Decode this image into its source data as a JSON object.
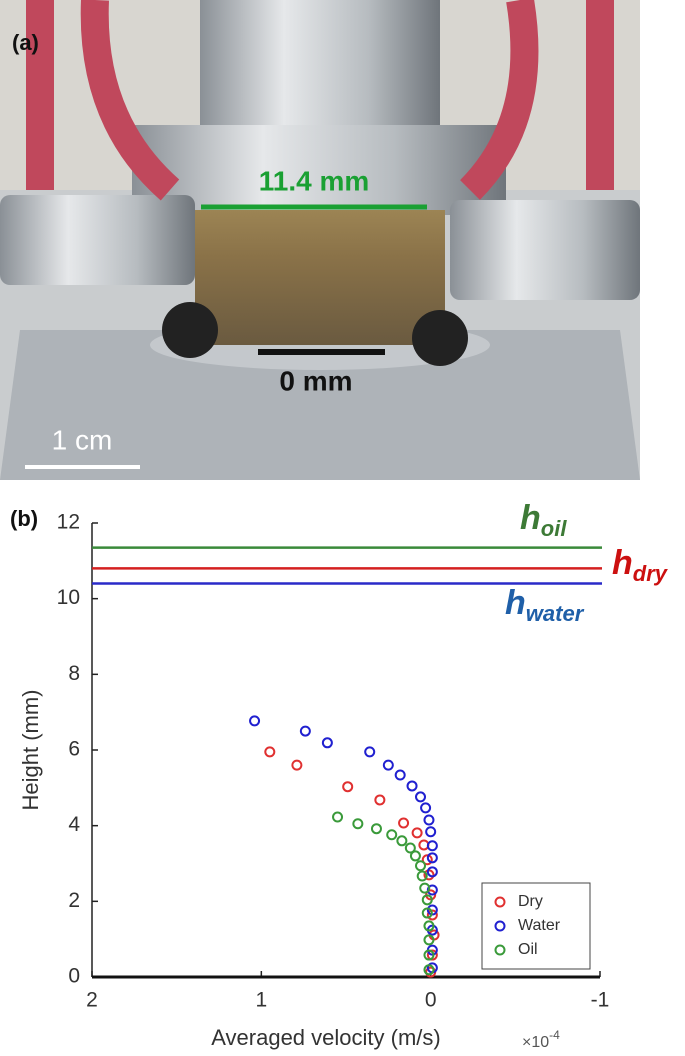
{
  "photo": {
    "panel_label": "(a)",
    "top_label": "11.4 mm",
    "bottom_label": "0 mm",
    "scale_bar": "1 cm"
  },
  "chart_data": {
    "type": "scatter",
    "panel_label": "(b)",
    "xlabel": "Averaged velocity (m/s)",
    "ylabel": "Height (mm)",
    "x_multiplier": {
      "base": "×10",
      "exponent": "-4"
    },
    "xlim": [
      2,
      -1
    ],
    "xticks": [
      2,
      1,
      0,
      -1
    ],
    "ylim": [
      0,
      12
    ],
    "yticks": [
      0,
      2,
      4,
      6,
      8,
      10,
      12
    ],
    "hlines": [
      {
        "value": 11.35,
        "symbol": "h",
        "subscript": "oil",
        "color": "#3a8a3a",
        "label_color": "#3d7a36"
      },
      {
        "value": 10.8,
        "symbol": "h",
        "subscript": "dry",
        "color": "#d42020",
        "label_color": "#cc1010"
      },
      {
        "value": 10.4,
        "symbol": "h",
        "subscript": "water",
        "color": "#2a2ac8",
        "label_color": "#1f5fa8"
      }
    ],
    "legend": "lower right",
    "series": [
      {
        "name": "Dry",
        "color": "#e03030",
        "x": [
          0.95,
          0.79,
          0.49,
          0.3,
          0.16,
          0.08,
          0.04,
          0.02,
          0.01,
          0,
          -0.01,
          -0.02,
          -0.01,
          0
        ],
        "values": [
          5.95,
          5.6,
          5.03,
          4.68,
          4.07,
          3.81,
          3.49,
          3.1,
          2.7,
          2.17,
          1.64,
          1.11,
          0.58,
          0.13
        ]
      },
      {
        "name": "Water",
        "color": "#2020d0",
        "x": [
          1.04,
          0.74,
          0.61,
          0.36,
          0.25,
          0.18,
          0.11,
          0.06,
          0.03,
          0.01,
          0,
          -0.01,
          -0.01,
          -0.01,
          -0.01,
          -0.01,
          -0.01,
          -0.01,
          -0.01
        ],
        "values": [
          6.77,
          6.5,
          6.19,
          5.95,
          5.6,
          5.34,
          5.05,
          4.76,
          4.47,
          4.15,
          3.84,
          3.47,
          3.15,
          2.78,
          2.3,
          1.77,
          1.24,
          0.71,
          0.24
        ]
      },
      {
        "name": "Oil",
        "color": "#3a9a3a",
        "x": [
          0.55,
          0.43,
          0.32,
          0.23,
          0.17,
          0.12,
          0.09,
          0.06,
          0.05,
          0.035,
          0.02,
          0.02,
          0.01,
          0.01,
          0.01,
          0.01
        ],
        "values": [
          4.23,
          4.05,
          3.92,
          3.76,
          3.6,
          3.41,
          3.2,
          2.94,
          2.67,
          2.35,
          2.04,
          1.69,
          1.35,
          0.98,
          0.58,
          0.19
        ]
      }
    ]
  }
}
